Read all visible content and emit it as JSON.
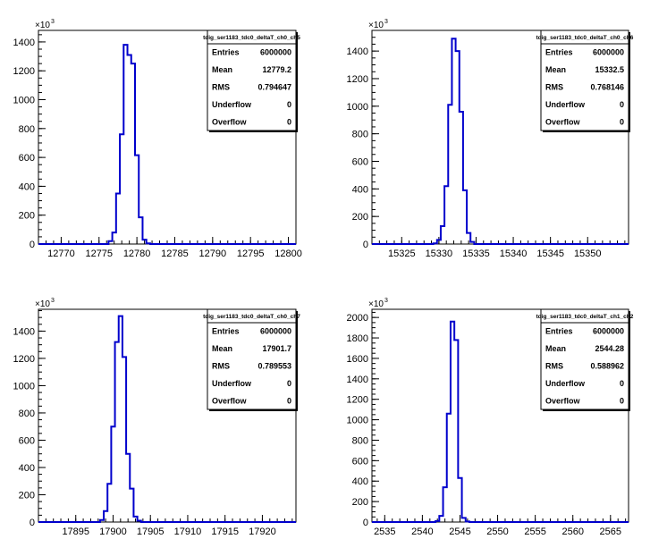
{
  "chart_data": [
    {
      "type": "histogram",
      "title": "tdig_ser1183_tdc0_deltaT_ch0_ch5",
      "y_multiplier": "×10",
      "y_exponent": "3",
      "xlim": [
        12767,
        12801
      ],
      "ylim": [
        0,
        1480
      ],
      "x_ticks": [
        "12770",
        "12775",
        "12780",
        "12785",
        "12790",
        "12795",
        "12800"
      ],
      "y_ticks": [
        "0",
        "200",
        "400",
        "600",
        "800",
        "1000",
        "1200",
        "1400"
      ],
      "bin_width": 0.5,
      "bins": [
        {
          "x": 12776.5,
          "y": 20
        },
        {
          "x": 12777.0,
          "y": 80
        },
        {
          "x": 12777.5,
          "y": 350
        },
        {
          "x": 12778.0,
          "y": 760
        },
        {
          "x": 12778.5,
          "y": 1380
        },
        {
          "x": 12779.0,
          "y": 1310
        },
        {
          "x": 12779.5,
          "y": 1250
        },
        {
          "x": 12780.0,
          "y": 615
        },
        {
          "x": 12780.5,
          "y": 185
        },
        {
          "x": 12781.0,
          "y": 30
        },
        {
          "x": 12781.5,
          "y": 5
        }
      ],
      "stats": [
        {
          "label": "Entries",
          "value": "6000000"
        },
        {
          "label": "Mean",
          "value": "12779.2"
        },
        {
          "label": "RMS",
          "value": "0.794647"
        },
        {
          "label": "Underflow",
          "value": "0"
        },
        {
          "label": "Overflow",
          "value": "0"
        }
      ]
    },
    {
      "type": "histogram",
      "title": "tdig_ser1183_tdc0_deltaT_ch0_ch6",
      "y_multiplier": "×10",
      "y_exponent": "3",
      "xlim": [
        15321,
        15355.5
      ],
      "ylim": [
        0,
        1550
      ],
      "x_ticks": [
        "15325",
        "15330",
        "15335",
        "15340",
        "15345",
        "15350"
      ],
      "y_ticks": [
        "0",
        "200",
        "400",
        "600",
        "800",
        "1000",
        "1200",
        "1400"
      ],
      "bin_width": 0.5,
      "bins": [
        {
          "x": 15329.5,
          "y": 5
        },
        {
          "x": 15330.0,
          "y": 30
        },
        {
          "x": 15330.5,
          "y": 130
        },
        {
          "x": 15331.0,
          "y": 420
        },
        {
          "x": 15331.5,
          "y": 1010
        },
        {
          "x": 15332.0,
          "y": 1490
        },
        {
          "x": 15332.5,
          "y": 1400
        },
        {
          "x": 15333.0,
          "y": 960
        },
        {
          "x": 15333.5,
          "y": 390
        },
        {
          "x": 15334.0,
          "y": 80
        },
        {
          "x": 15334.5,
          "y": 15
        }
      ],
      "stats": [
        {
          "label": "Entries",
          "value": "6000000"
        },
        {
          "label": "Mean",
          "value": "15332.5"
        },
        {
          "label": "RMS",
          "value": "0.768146"
        },
        {
          "label": "Underflow",
          "value": "0"
        },
        {
          "label": "Overflow",
          "value": "0"
        }
      ]
    },
    {
      "type": "histogram",
      "title": "tdig_ser1183_tdc0_deltaT_ch0_ch7",
      "y_multiplier": "×10",
      "y_exponent": "3",
      "xlim": [
        17890,
        17924.5
      ],
      "ylim": [
        0,
        1560
      ],
      "x_ticks": [
        "17895",
        "17900",
        "17905",
        "17910",
        "17915",
        "17920"
      ],
      "y_ticks": [
        "0",
        "200",
        "400",
        "600",
        "800",
        "1000",
        "1200",
        "1400"
      ],
      "bin_width": 0.5,
      "bins": [
        {
          "x": 17898.5,
          "y": 15
        },
        {
          "x": 17899.0,
          "y": 80
        },
        {
          "x": 17899.5,
          "y": 280
        },
        {
          "x": 17900.0,
          "y": 700
        },
        {
          "x": 17900.5,
          "y": 1320
        },
        {
          "x": 17901.0,
          "y": 1510
        },
        {
          "x": 17901.5,
          "y": 1210
        },
        {
          "x": 17902.0,
          "y": 500
        },
        {
          "x": 17902.5,
          "y": 245
        },
        {
          "x": 17903.0,
          "y": 40
        },
        {
          "x": 17903.5,
          "y": 10
        }
      ],
      "stats": [
        {
          "label": "Entries",
          "value": "6000000"
        },
        {
          "label": "Mean",
          "value": "17901.7"
        },
        {
          "label": "RMS",
          "value": "0.789553"
        },
        {
          "label": "Underflow",
          "value": "0"
        },
        {
          "label": "Overflow",
          "value": "0"
        }
      ]
    },
    {
      "type": "histogram",
      "title": "tdig_ser1183_tdc0_deltaT_ch1_ch2",
      "y_multiplier": "×10",
      "y_exponent": "3",
      "xlim": [
        2533.3,
        2567.4
      ],
      "ylim": [
        0,
        2080
      ],
      "x_ticks": [
        "2535",
        "2540",
        "2545",
        "2550",
        "2555",
        "2560",
        "2565"
      ],
      "y_ticks": [
        "0",
        "200",
        "400",
        "600",
        "800",
        "1000",
        "1200",
        "1400",
        "1600",
        "1800",
        "2000"
      ],
      "bin_width": 0.5,
      "bins": [
        {
          "x": 2542.0,
          "y": 10
        },
        {
          "x": 2542.5,
          "y": 60
        },
        {
          "x": 2543.0,
          "y": 340
        },
        {
          "x": 2543.5,
          "y": 1060
        },
        {
          "x": 2544.0,
          "y": 1960
        },
        {
          "x": 2544.5,
          "y": 1780
        },
        {
          "x": 2545.0,
          "y": 430
        },
        {
          "x": 2545.5,
          "y": 40
        },
        {
          "x": 2546.0,
          "y": 5
        }
      ],
      "stats": [
        {
          "label": "Entries",
          "value": "6000000"
        },
        {
          "label": "Mean",
          "value": "2544.28"
        },
        {
          "label": "RMS",
          "value": "0.588962"
        },
        {
          "label": "Underflow",
          "value": "0"
        },
        {
          "label": "Overflow",
          "value": "0"
        }
      ]
    }
  ],
  "colors": {
    "histogram_line": "#0000cc",
    "axis": "#000000",
    "background": "#ffffff"
  }
}
